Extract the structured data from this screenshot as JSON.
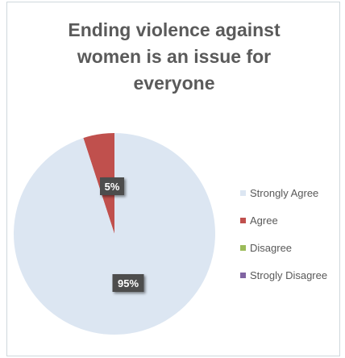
{
  "chart_data": {
    "type": "pie",
    "title": [
      "Ending violence against",
      "women is an issue for",
      "everyone"
    ],
    "categories": [
      "Strongly Agree",
      "Agree",
      "Disagree",
      "Strogly Disagree"
    ],
    "values": [
      95,
      5,
      0,
      0
    ],
    "data_labels": [
      "95%",
      "5%",
      "",
      ""
    ],
    "colors": [
      "#dce6f2",
      "#c0504d",
      "#9bbb59",
      "#8064a2"
    ],
    "legend_position": "right"
  }
}
